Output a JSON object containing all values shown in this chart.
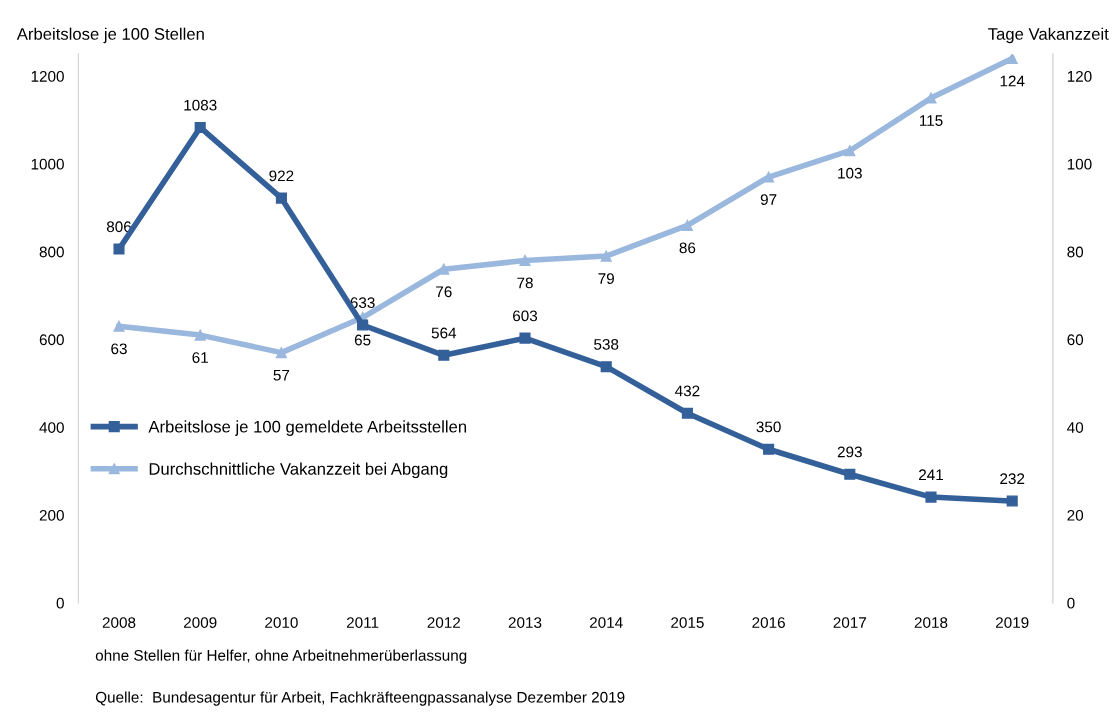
{
  "chart_data": {
    "type": "line",
    "ylabel": "Arbeitslose je 100 Stellen",
    "y2label": "Tage Vakanzzeit",
    "categories": [
      "2008",
      "2009",
      "2010",
      "2011",
      "2012",
      "2013",
      "2014",
      "2015",
      "2016",
      "2017",
      "2018",
      "2019"
    ],
    "series": [
      {
        "name": "Arbeitslose je 100 gemeldete Arbeitsstellen",
        "color": "#34609a",
        "marker": "square",
        "values": [
          806,
          1083,
          922,
          633,
          564,
          603,
          538,
          432,
          350,
          293,
          241,
          232
        ]
      },
      {
        "name": "Durchschnittliche Vakanzzeit bei Abgang",
        "color": "#9ab7dd",
        "marker": "triangle",
        "axis": "y2",
        "values": [
          63,
          61,
          57,
          65,
          76,
          78,
          79,
          86,
          97,
          103,
          115,
          124
        ]
      }
    ],
    "ylim": [
      0,
      1250
    ],
    "yticks": [
      0,
      200,
      400,
      600,
      800,
      1000,
      1200
    ],
    "y2lim": [
      0,
      125
    ],
    "y2ticks": [
      0,
      20,
      40,
      60,
      80,
      100,
      120
    ],
    "data_labels": true,
    "grid": false,
    "legend": "left",
    "annotations": [
      "ohne Stellen für Helfer, ohne Arbeitnehmerüberlassung",
      "Quelle:  Bundesagentur für Arbeit, Fachkräfteengpassanalyse Dezember 2019"
    ]
  }
}
